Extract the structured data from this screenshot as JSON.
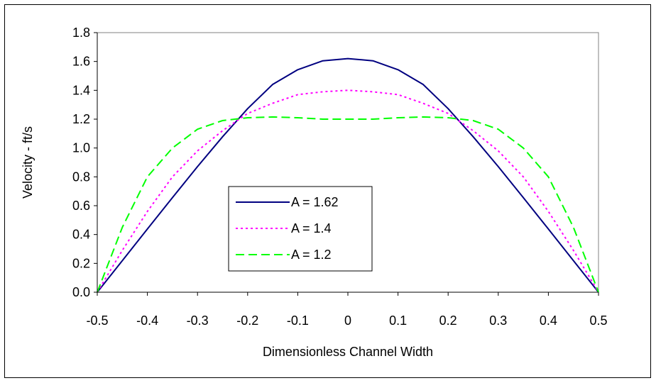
{
  "chart_data": {
    "type": "line",
    "title": "",
    "xlabel": "Dimensionless Channel Width",
    "ylabel": "Velocity - ft/s",
    "xlim": [
      -0.5,
      0.5
    ],
    "ylim": [
      0,
      1.8
    ],
    "grid": false,
    "legend_position": "center-left",
    "x_ticks": [
      {
        "value": -0.5,
        "label": "-0.5"
      },
      {
        "value": -0.4,
        "label": "-0.4"
      },
      {
        "value": -0.3,
        "label": "-0.3"
      },
      {
        "value": -0.2,
        "label": "-0.2"
      },
      {
        "value": -0.1,
        "label": "-0.1"
      },
      {
        "value": 0,
        "label": "0"
      },
      {
        "value": 0.1,
        "label": "0.1"
      },
      {
        "value": 0.2,
        "label": "0.2"
      },
      {
        "value": 0.3,
        "label": "0.3"
      },
      {
        "value": 0.4,
        "label": "0.4"
      },
      {
        "value": 0.5,
        "label": "0.5"
      }
    ],
    "y_ticks": [
      {
        "value": 0,
        "label": "0.0"
      },
      {
        "value": 0.2,
        "label": "0.2"
      },
      {
        "value": 0.4,
        "label": "0.4"
      },
      {
        "value": 0.6,
        "label": "0.6"
      },
      {
        "value": 0.8,
        "label": "0.8"
      },
      {
        "value": 1.0,
        "label": "1.0"
      },
      {
        "value": 1.2,
        "label": "1.2"
      },
      {
        "value": 1.4,
        "label": "1.4"
      },
      {
        "value": 1.6,
        "label": "1.6"
      },
      {
        "value": 1.8,
        "label": "1.8"
      }
    ],
    "x": [
      -0.5,
      -0.45,
      -0.4,
      -0.35,
      -0.3,
      -0.25,
      -0.2,
      -0.15,
      -0.1,
      -0.05,
      0,
      0.05,
      0.1,
      0.15,
      0.2,
      0.25,
      0.3,
      0.35,
      0.4,
      0.45,
      0.5
    ],
    "series": [
      {
        "name": "A = 1.62",
        "color": "#000080",
        "dash": "solid",
        "values": [
          0,
          0.219,
          0.438,
          0.656,
          0.871,
          1.078,
          1.273,
          1.441,
          1.543,
          1.605,
          1.62,
          1.605,
          1.543,
          1.441,
          1.273,
          1.078,
          0.871,
          0.656,
          0.438,
          0.219,
          0
        ]
      },
      {
        "name": "A = 1.4",
        "color": "#ff00ff",
        "dash": "dotted",
        "values": [
          0,
          0.29,
          0.56,
          0.8,
          0.98,
          1.12,
          1.24,
          1.31,
          1.37,
          1.39,
          1.4,
          1.39,
          1.37,
          1.31,
          1.24,
          1.12,
          0.98,
          0.8,
          0.56,
          0.29,
          0
        ]
      },
      {
        "name": "A = 1.2",
        "color": "#00ff00",
        "dash": "dashed",
        "values": [
          0,
          0.45,
          0.8,
          1.0,
          1.13,
          1.19,
          1.21,
          1.215,
          1.21,
          1.2,
          1.2,
          1.2,
          1.21,
          1.215,
          1.21,
          1.19,
          1.13,
          1.0,
          0.8,
          0.45,
          0
        ]
      }
    ]
  }
}
